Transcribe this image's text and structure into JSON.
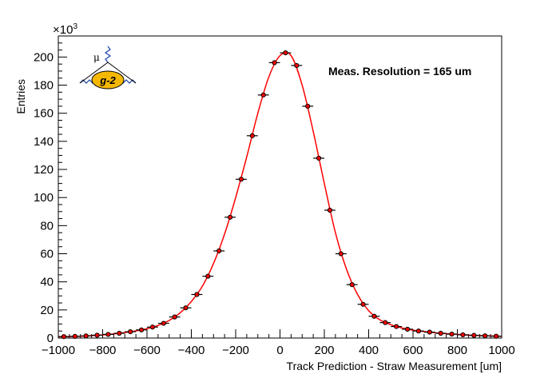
{
  "chart_data": {
    "type": "scatter",
    "xlabel": "Track Prediction - Straw Measurement [um]",
    "ylabel": "Entries",
    "y_multiplier_label": "×10",
    "y_multiplier_exp": "3",
    "xlim": [
      -1000,
      1000
    ],
    "ylim": [
      0,
      215
    ],
    "x_ticks": [
      -1000,
      -800,
      -600,
      -400,
      -200,
      0,
      200,
      400,
      600,
      800,
      1000
    ],
    "x_tick_labels": [
      "−1000",
      "−800",
      "−600",
      "−400",
      "−200",
      "0",
      "200",
      "400",
      "600",
      "800",
      "1000"
    ],
    "y_ticks": [
      0,
      20,
      40,
      60,
      80,
      100,
      120,
      140,
      160,
      180,
      200
    ],
    "y_tick_labels": [
      "0",
      "20",
      "40",
      "60",
      "80",
      "100",
      "120",
      "140",
      "160",
      "180",
      "200"
    ],
    "bin_width": 50,
    "annotation": "Meas. Resolution = 165 um",
    "grid": false,
    "series": [
      {
        "kind": "data-points-with-errorbars",
        "color": "#000000",
        "x": [
          -975,
          -925,
          -875,
          -825,
          -775,
          -725,
          -675,
          -625,
          -575,
          -525,
          -475,
          -425,
          -375,
          -325,
          -275,
          -225,
          -175,
          -125,
          -75,
          -25,
          25,
          75,
          125,
          175,
          225,
          275,
          325,
          375,
          425,
          475,
          525,
          575,
          625,
          675,
          725,
          775,
          825,
          875,
          925,
          975
        ],
        "y": [
          1.0,
          1.2,
          1.5,
          2.0,
          2.6,
          3.4,
          4.5,
          5.8,
          7.8,
          10.5,
          15,
          21.5,
          31,
          44,
          62,
          86,
          113,
          144,
          173,
          196,
          203,
          194,
          165,
          128,
          91,
          60,
          38,
          24,
          15.5,
          11,
          8.2,
          6.3,
          5.0,
          4.2,
          3.4,
          2.8,
          2.3,
          1.9,
          1.6,
          1.3
        ]
      },
      {
        "kind": "fit-curve",
        "color": "#ff0000",
        "x": [
          -1000,
          -950,
          -900,
          -850,
          -800,
          -750,
          -700,
          -650,
          -600,
          -550,
          -500,
          -450,
          -400,
          -350,
          -300,
          -250,
          -200,
          -150,
          -100,
          -50,
          0,
          50,
          100,
          150,
          200,
          250,
          300,
          350,
          400,
          450,
          500,
          550,
          600,
          650,
          700,
          750,
          800,
          850,
          900,
          950,
          1000
        ],
        "y": [
          0.9,
          1.1,
          1.3,
          1.7,
          2.2,
          2.9,
          3.9,
          5.1,
          6.7,
          9.0,
          12.5,
          18,
          26,
          37,
          53,
          74,
          100,
          129,
          160,
          186,
          201,
          201,
          180,
          147,
          110,
          75,
          49,
          31,
          19.5,
          13,
          9.5,
          7.2,
          5.6,
          4.6,
          3.8,
          3.1,
          2.6,
          2.1,
          1.8,
          1.5,
          1.2
        ]
      }
    ]
  },
  "logo": {
    "mu_label": "μ",
    "badge_text": "g-2",
    "badge_fill": "#f5b800",
    "wave_color": "#1a3fa8"
  },
  "colors": {
    "frame": "#000000",
    "fit": "#ff0000",
    "points": "#000000"
  }
}
